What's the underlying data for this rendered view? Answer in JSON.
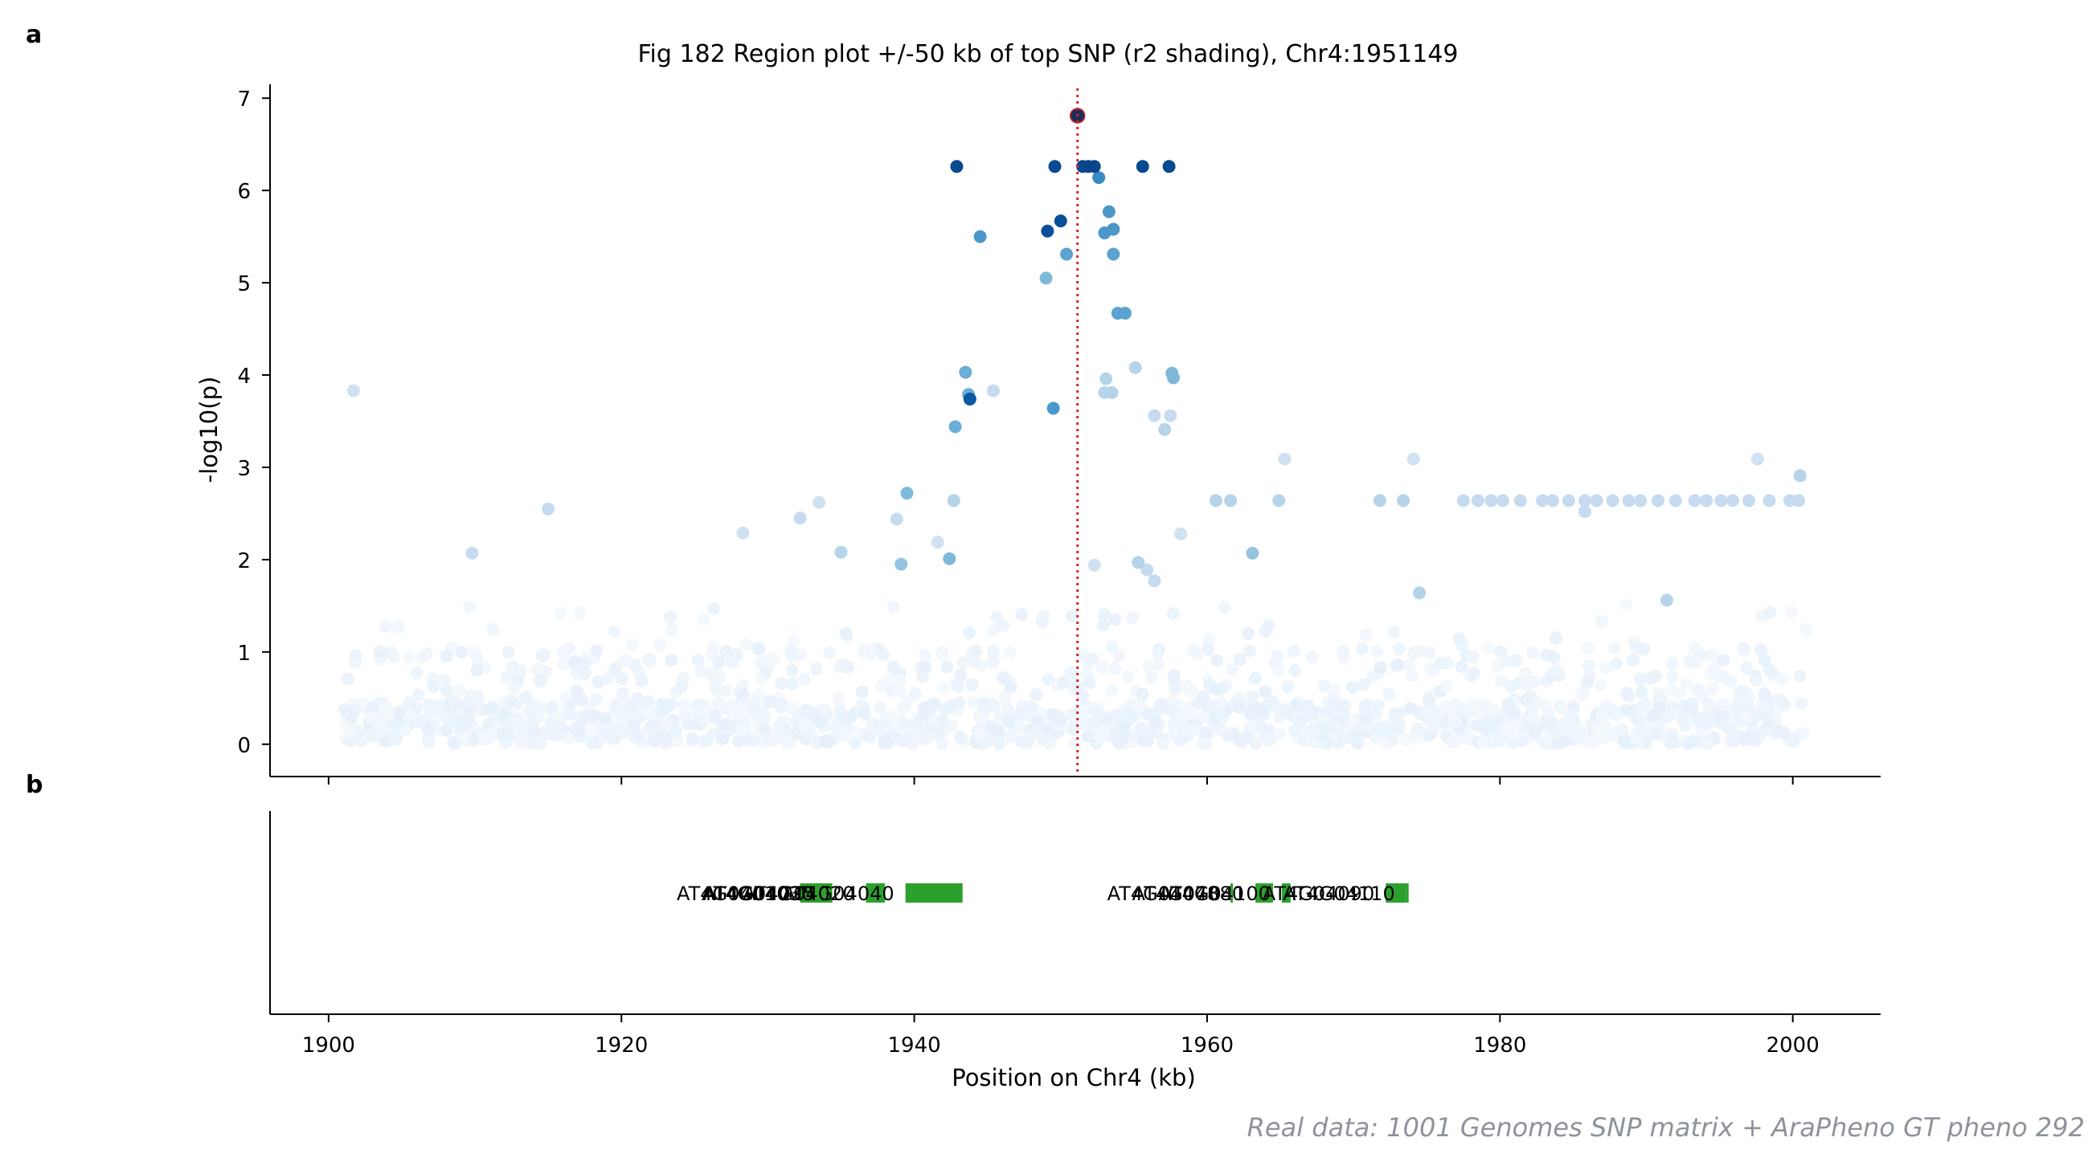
{
  "labels": {
    "panel_a": "a",
    "panel_b": "b"
  },
  "title": "Fig 182  Region plot +/-50 kb of top SNP (r2 shading), Chr4:1951149",
  "credit": "Real data: 1001 Genomes SNP matrix + AraPheno GT pheno 292",
  "colors": {
    "lead_snp": "#1c2d57",
    "threshold_line": "#d62728",
    "gene": "#2ca02c",
    "axis": "#000000"
  },
  "chart_data": [
    {
      "panel": "a",
      "type": "scatter",
      "title": "Fig 182  Region plot +/-50 kb of top SNP (r2 shading), Chr4:1951149",
      "xlabel": "",
      "ylabel": "-log10(p)",
      "xlim": [
        1896,
        2006
      ],
      "ylim": [
        -0.35,
        7.15
      ],
      "xticks": [
        1900,
        1920,
        1940,
        1960,
        1980,
        2000
      ],
      "yticks": [
        0,
        1,
        2,
        3,
        4,
        5,
        6,
        7
      ],
      "xtick_labels_shown": false,
      "vline": {
        "x": 1951.149,
        "style": "dotted",
        "color": "#d62728"
      },
      "color_encoding": "r2 with lead SNP (Blues colormap)",
      "lead_snp": {
        "x": 1951.149,
        "y": 6.81
      },
      "points": [
        {
          "x": 1951.15,
          "y": 6.81,
          "r2": 1.0
        },
        {
          "x": 1942.9,
          "y": 6.26,
          "r2": 0.9
        },
        {
          "x": 1949.6,
          "y": 6.26,
          "r2": 0.9
        },
        {
          "x": 1951.5,
          "y": 6.26,
          "r2": 0.9
        },
        {
          "x": 1951.9,
          "y": 6.26,
          "r2": 0.92
        },
        {
          "x": 1952.3,
          "y": 6.26,
          "r2": 0.92
        },
        {
          "x": 1955.6,
          "y": 6.26,
          "r2": 0.9
        },
        {
          "x": 1957.4,
          "y": 6.26,
          "r2": 0.9
        },
        {
          "x": 1952.6,
          "y": 6.14,
          "r2": 0.65
        },
        {
          "x": 1950.0,
          "y": 5.67,
          "r2": 0.88
        },
        {
          "x": 1949.1,
          "y": 5.56,
          "r2": 0.88
        },
        {
          "x": 1953.3,
          "y": 5.77,
          "r2": 0.6
        },
        {
          "x": 1944.5,
          "y": 5.5,
          "r2": 0.6
        },
        {
          "x": 1953.0,
          "y": 5.54,
          "r2": 0.6
        },
        {
          "x": 1953.6,
          "y": 5.58,
          "r2": 0.6
        },
        {
          "x": 1950.4,
          "y": 5.31,
          "r2": 0.55
        },
        {
          "x": 1953.6,
          "y": 5.31,
          "r2": 0.55
        },
        {
          "x": 1949.0,
          "y": 5.05,
          "r2": 0.45
        },
        {
          "x": 1953.9,
          "y": 4.67,
          "r2": 0.55
        },
        {
          "x": 1954.4,
          "y": 4.67,
          "r2": 0.55
        },
        {
          "x": 1943.5,
          "y": 4.03,
          "r2": 0.5
        },
        {
          "x": 1955.1,
          "y": 4.08,
          "r2": 0.3
        },
        {
          "x": 1957.6,
          "y": 4.02,
          "r2": 0.45
        },
        {
          "x": 1957.7,
          "y": 3.97,
          "r2": 0.45
        },
        {
          "x": 1953.1,
          "y": 3.96,
          "r2": 0.3
        },
        {
          "x": 1945.4,
          "y": 3.83,
          "r2": 0.25
        },
        {
          "x": 1901.7,
          "y": 3.83,
          "r2": 0.2
        },
        {
          "x": 1943.7,
          "y": 3.79,
          "r2": 0.5
        },
        {
          "x": 1943.8,
          "y": 3.74,
          "r2": 0.85
        },
        {
          "x": 1953.0,
          "y": 3.81,
          "r2": 0.3
        },
        {
          "x": 1953.5,
          "y": 3.81,
          "r2": 0.3
        },
        {
          "x": 1949.5,
          "y": 3.64,
          "r2": 0.6
        },
        {
          "x": 1956.4,
          "y": 3.56,
          "r2": 0.25
        },
        {
          "x": 1957.5,
          "y": 3.56,
          "r2": 0.25
        },
        {
          "x": 1957.1,
          "y": 3.41,
          "r2": 0.3
        },
        {
          "x": 1942.8,
          "y": 3.44,
          "r2": 0.5
        },
        {
          "x": 1965.3,
          "y": 3.09,
          "r2": 0.2
        },
        {
          "x": 1974.1,
          "y": 3.09,
          "r2": 0.2
        },
        {
          "x": 1997.6,
          "y": 3.09,
          "r2": 0.2
        },
        {
          "x": 2000.5,
          "y": 2.91,
          "r2": 0.3
        },
        {
          "x": 1939.5,
          "y": 2.72,
          "r2": 0.45
        },
        {
          "x": 1942.7,
          "y": 2.64,
          "r2": 0.3
        },
        {
          "x": 1960.6,
          "y": 2.64,
          "r2": 0.3
        },
        {
          "x": 1961.6,
          "y": 2.64,
          "r2": 0.3
        },
        {
          "x": 1964.9,
          "y": 2.64,
          "r2": 0.3
        },
        {
          "x": 1971.8,
          "y": 2.64,
          "r2": 0.3
        },
        {
          "x": 1973.4,
          "y": 2.64,
          "r2": 0.3
        },
        {
          "x": 1977.5,
          "y": 2.64,
          "r2": 0.25
        },
        {
          "x": 1978.5,
          "y": 2.64,
          "r2": 0.25
        },
        {
          "x": 1979.4,
          "y": 2.64,
          "r2": 0.25
        },
        {
          "x": 1980.2,
          "y": 2.64,
          "r2": 0.25
        },
        {
          "x": 1981.4,
          "y": 2.64,
          "r2": 0.25
        },
        {
          "x": 1982.9,
          "y": 2.64,
          "r2": 0.25
        },
        {
          "x": 1983.6,
          "y": 2.64,
          "r2": 0.25
        },
        {
          "x": 1984.7,
          "y": 2.64,
          "r2": 0.25
        },
        {
          "x": 1985.8,
          "y": 2.64,
          "r2": 0.25
        },
        {
          "x": 1986.6,
          "y": 2.64,
          "r2": 0.25
        },
        {
          "x": 1987.7,
          "y": 2.64,
          "r2": 0.25
        },
        {
          "x": 1988.8,
          "y": 2.64,
          "r2": 0.25
        },
        {
          "x": 1989.6,
          "y": 2.64,
          "r2": 0.25
        },
        {
          "x": 1990.8,
          "y": 2.64,
          "r2": 0.25
        },
        {
          "x": 1992.0,
          "y": 2.64,
          "r2": 0.25
        },
        {
          "x": 1993.3,
          "y": 2.64,
          "r2": 0.25
        },
        {
          "x": 1994.1,
          "y": 2.64,
          "r2": 0.25
        },
        {
          "x": 1995.1,
          "y": 2.64,
          "r2": 0.25
        },
        {
          "x": 1995.9,
          "y": 2.64,
          "r2": 0.25
        },
        {
          "x": 1997.0,
          "y": 2.64,
          "r2": 0.25
        },
        {
          "x": 1998.4,
          "y": 2.64,
          "r2": 0.25
        },
        {
          "x": 1999.8,
          "y": 2.64,
          "r2": 0.25
        },
        {
          "x": 2000.4,
          "y": 2.64,
          "r2": 0.25
        },
        {
          "x": 1915.0,
          "y": 2.55,
          "r2": 0.25
        },
        {
          "x": 1932.2,
          "y": 2.45,
          "r2": 0.25
        },
        {
          "x": 1933.5,
          "y": 2.62,
          "r2": 0.2
        },
        {
          "x": 1938.8,
          "y": 2.44,
          "r2": 0.25
        },
        {
          "x": 1928.3,
          "y": 2.29,
          "r2": 0.2
        },
        {
          "x": 1941.6,
          "y": 2.19,
          "r2": 0.2
        },
        {
          "x": 1958.2,
          "y": 2.28,
          "r2": 0.2
        },
        {
          "x": 1963.1,
          "y": 2.07,
          "r2": 0.4
        },
        {
          "x": 1935.0,
          "y": 2.08,
          "r2": 0.3
        },
        {
          "x": 1909.8,
          "y": 2.07,
          "r2": 0.25
        },
        {
          "x": 1942.4,
          "y": 2.01,
          "r2": 0.45
        },
        {
          "x": 1939.1,
          "y": 1.95,
          "r2": 0.4
        },
        {
          "x": 1955.3,
          "y": 1.97,
          "r2": 0.3
        },
        {
          "x": 1955.9,
          "y": 1.89,
          "r2": 0.25
        },
        {
          "x": 1956.4,
          "y": 1.77,
          "r2": 0.25
        },
        {
          "x": 1952.3,
          "y": 1.94,
          "r2": 0.2
        },
        {
          "x": 1974.5,
          "y": 1.64,
          "r2": 0.3
        },
        {
          "x": 1991.4,
          "y": 1.56,
          "r2": 0.3
        },
        {
          "x": 1985.8,
          "y": 2.52,
          "r2": 0.25
        }
      ],
      "background_points": "dense band of low-r2 SNPs across 1901-2001 kb with -log10(p) mostly between 0 and 1.6"
    },
    {
      "panel": "b",
      "type": "gene_track",
      "xlabel": "Position on Chr4 (kb)",
      "xlim": [
        1896,
        2006
      ],
      "xticks": [
        1900,
        1920,
        1940,
        1960,
        1980,
        2000
      ],
      "genes": [
        {
          "name": "AT4G04010",
          "start": 1932.2,
          "end": 1933.9
        },
        {
          "name": "AT4G04030",
          "start": 1933.9,
          "end": 1934.0
        },
        {
          "name": "AT4G04025",
          "start": 1934.0,
          "end": 1934.4
        },
        {
          "name": "AT4G04020",
          "start": 1936.7,
          "end": 1938.0
        },
        {
          "name": "AT4G04040",
          "start": 1939.4,
          "end": 1943.3
        },
        {
          "name": "AT4G04078",
          "start": 1961.6,
          "end": 1961.7
        },
        {
          "name": "AT4G04080",
          "start": 1963.3,
          "end": 1964.5
        },
        {
          "name": "AT4G04100",
          "start": 1965.1,
          "end": 1965.7
        },
        {
          "name": "AT4G04090",
          "start": 1972.2,
          "end": 1973.6
        },
        {
          "name": "AT4G04110",
          "start": 1973.6,
          "end": 1973.7
        }
      ]
    }
  ]
}
